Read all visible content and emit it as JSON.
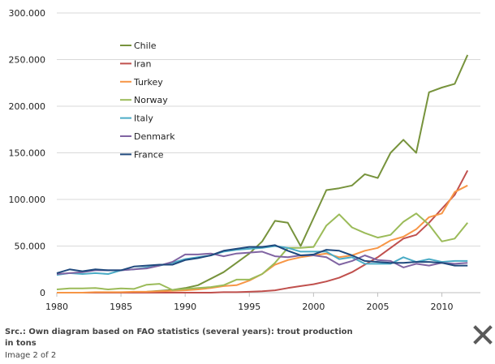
{
  "chart_data": {
    "type": "line",
    "title": "",
    "xlabel": "",
    "ylabel": "",
    "xlim": [
      1980,
      2013
    ],
    "ylim": [
      0,
      300000
    ],
    "x_ticks": [
      1980,
      1985,
      1990,
      1995,
      2000,
      2005,
      2010
    ],
    "y_ticks": [
      "0",
      "50.000",
      "100.000",
      "150.000",
      "200.000",
      "250.000",
      "300.000"
    ],
    "grid": "horizontal",
    "legend_position": "top-left",
    "x": [
      1980,
      1981,
      1982,
      1983,
      1984,
      1985,
      1986,
      1987,
      1988,
      1989,
      1990,
      1991,
      1992,
      1993,
      1994,
      1995,
      1996,
      1997,
      1998,
      1999,
      2000,
      2001,
      2002,
      2003,
      2004,
      2005,
      2006,
      2007,
      2008,
      2009,
      2010,
      2011,
      2012
    ],
    "series": [
      {
        "name": "Chile",
        "color": "#77933c",
        "values": [
          0,
          0,
          0,
          0,
          0,
          0,
          500,
          1000,
          2000,
          3000,
          5000,
          8000,
          15000,
          22000,
          32000,
          42000,
          55000,
          77000,
          75000,
          50000,
          80000,
          110000,
          112000,
          115000,
          127000,
          123000,
          150000,
          164000,
          150000,
          215000,
          220000,
          224000,
          255000
        ]
      },
      {
        "name": "Iran",
        "color": "#c0504d",
        "values": [
          0,
          0,
          0,
          0,
          0,
          0,
          0,
          0,
          0,
          0,
          0,
          0,
          0,
          500,
          500,
          1000,
          1500,
          2500,
          5000,
          7000,
          9000,
          12000,
          16000,
          22000,
          30000,
          38000,
          48000,
          58000,
          62000,
          75000,
          90000,
          105000,
          131000
        ]
      },
      {
        "name": "Turkey",
        "color": "#f79646",
        "values": [
          0,
          0,
          0,
          500,
          500,
          500,
          1000,
          1000,
          1500,
          2000,
          2500,
          3500,
          5000,
          7000,
          8000,
          13000,
          20000,
          30000,
          35000,
          38000,
          40000,
          42000,
          38000,
          40000,
          45000,
          48000,
          56000,
          60000,
          68000,
          81000,
          85000,
          108000,
          115000
        ]
      },
      {
        "name": "Norway",
        "color": "#9bbb59",
        "values": [
          3500,
          4500,
          4500,
          5000,
          3500,
          4500,
          4000,
          8500,
          9500,
          3000,
          4000,
          5000,
          6000,
          8000,
          14000,
          14000,
          20000,
          32000,
          48000,
          48000,
          49000,
          72000,
          84000,
          70000,
          64000,
          59000,
          62000,
          76000,
          85000,
          73000,
          55000,
          58000,
          75000
        ]
      },
      {
        "name": "Italy",
        "color": "#4bacc6",
        "values": [
          19000,
          21000,
          20000,
          21000,
          20000,
          24000,
          25000,
          27000,
          29000,
          32000,
          36000,
          38000,
          40000,
          44000,
          46000,
          47000,
          48000,
          50000,
          48000,
          44000,
          44000,
          44000,
          36000,
          38000,
          31000,
          31000,
          31000,
          38000,
          33000,
          36000,
          33000,
          34000,
          34000
        ]
      },
      {
        "name": "Denmark",
        "color": "#8064a2",
        "values": [
          20000,
          21000,
          22000,
          24000,
          24000,
          24000,
          25000,
          26000,
          29000,
          33000,
          41000,
          41000,
          42000,
          39000,
          42000,
          43000,
          44000,
          39000,
          38000,
          40000,
          40000,
          38000,
          30000,
          34000,
          40000,
          35000,
          34000,
          27000,
          31000,
          29000,
          32000,
          31000,
          32000
        ]
      },
      {
        "name": "France",
        "color": "#1f497d",
        "values": [
          21000,
          25000,
          23000,
          25000,
          24000,
          24000,
          28000,
          29000,
          30000,
          30000,
          35000,
          37000,
          40000,
          45000,
          47000,
          49000,
          49000,
          51000,
          45000,
          40000,
          41000,
          46000,
          45000,
          40000,
          34000,
          33000,
          32000,
          32000,
          33000,
          33000,
          32000,
          29000,
          29000
        ]
      }
    ]
  },
  "footer": {
    "caption": "Src.: Own diagram based on FAO statistics (several years): trout production in tons",
    "counter": "Image 2 of 2"
  },
  "close_icon": "close-icon"
}
